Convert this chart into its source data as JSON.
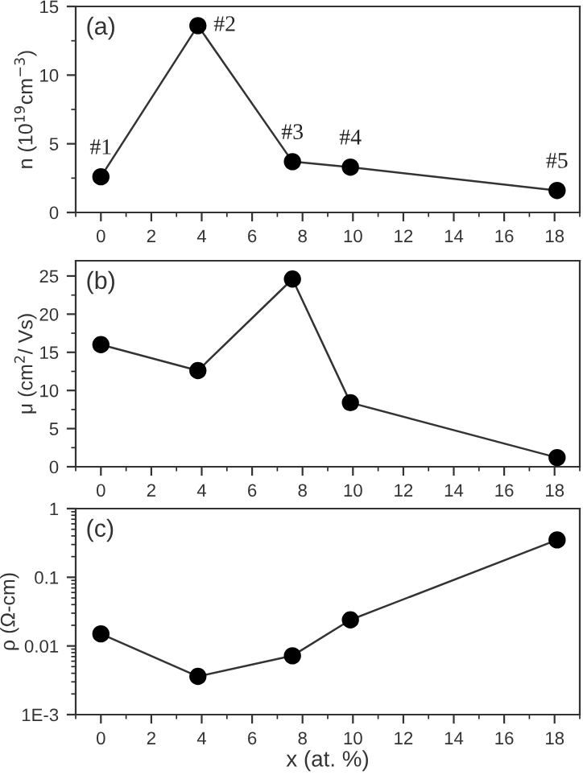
{
  "chart_data": [
    {
      "type": "line",
      "x": [
        0,
        3.85,
        7.6,
        9.9,
        18.1
      ],
      "series": [
        {
          "color": "#000000",
          "values": [
            2.6,
            13.6,
            3.7,
            3.3,
            1.6
          ]
        }
      ],
      "ylabel": "n (10$^{19}$cm$^{−3}$)",
      "xlim": [
        -1,
        19
      ],
      "xticks": [
        0,
        2,
        4,
        6,
        8,
        10,
        12,
        14,
        16,
        18
      ],
      "ylim": [
        0,
        15
      ],
      "yticks": [
        0,
        5,
        10,
        15
      ],
      "marker": "circle",
      "grid": false,
      "annotations": [
        "(a)",
        {
          "text": "#1",
          "x": 0,
          "y": 2.6
        },
        {
          "text": "#2",
          "x": 3.85,
          "y": 13.6
        },
        {
          "text": "#3",
          "x": 7.6,
          "y": 3.7
        },
        {
          "text": "#4",
          "x": 9.9,
          "y": 3.3
        },
        {
          "text": "#5",
          "x": 18.1,
          "y": 1.6
        }
      ]
    },
    {
      "type": "line",
      "x": [
        0,
        3.85,
        7.6,
        9.9,
        18.1
      ],
      "series": [
        {
          "color": "#000000",
          "values": [
            16,
            12.6,
            24.6,
            8.4,
            1.2
          ]
        }
      ],
      "ylabel": "μ (cm$^{2}$/ Vs)",
      "xlim": [
        -1,
        19
      ],
      "xticks": [
        0,
        2,
        4,
        6,
        8,
        10,
        12,
        14,
        16,
        18
      ],
      "ylim": [
        0,
        27
      ],
      "yticks": [
        0,
        5,
        10,
        15,
        20,
        25
      ],
      "marker": "circle",
      "grid": false,
      "annotations": [
        "(b)"
      ]
    },
    {
      "type": "line",
      "x": [
        0,
        3.85,
        7.6,
        9.9,
        18.1
      ],
      "series": [
        {
          "color": "#000000",
          "values": [
            0.015,
            0.0036,
            0.0072,
            0.024,
            0.35
          ]
        }
      ],
      "ylabel": "ρ (Ω-cm)",
      "xlabel": "x (at. %)",
      "xlim": [
        -1,
        19
      ],
      "xticks": [
        0,
        2,
        4,
        6,
        8,
        10,
        12,
        14,
        16,
        18
      ],
      "ylim": [
        0.001,
        1
      ],
      "yticks": [
        {
          "value": 0.001,
          "label": "1E-3"
        },
        0.01,
        0.1,
        1
      ],
      "log": "y",
      "marker": "circle",
      "grid": false,
      "annotations": [
        "(c)"
      ]
    }
  ]
}
